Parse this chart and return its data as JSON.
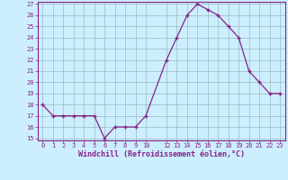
{
  "x": [
    0,
    1,
    2,
    3,
    4,
    5,
    6,
    7,
    8,
    9,
    10,
    12,
    13,
    14,
    15,
    16,
    17,
    18,
    19,
    20,
    21,
    22,
    23
  ],
  "y": [
    18,
    17,
    17,
    17,
    17,
    17,
    15,
    16,
    16,
    16,
    17,
    22,
    24,
    26,
    27,
    26.5,
    26,
    25,
    24,
    21,
    20,
    19,
    19
  ],
  "line_color": "#882288",
  "marker_color": "#882288",
  "bg_color": "#cceeff",
  "grid_color": "#99bbbb",
  "xlabel": "Windchill (Refroidissement éolien,°C)",
  "ylim": [
    15,
    27
  ],
  "xlim": [
    -0.5,
    23.5
  ],
  "yticks": [
    15,
    16,
    17,
    18,
    19,
    20,
    21,
    22,
    23,
    24,
    25,
    26,
    27
  ],
  "xticks": [
    0,
    1,
    2,
    3,
    4,
    5,
    6,
    7,
    8,
    9,
    10,
    12,
    13,
    14,
    15,
    16,
    17,
    18,
    19,
    20,
    21,
    22,
    23
  ],
  "tick_color": "#882288",
  "label_color": "#882288",
  "spine_color": "#882288",
  "tick_fontsize": 5.0,
  "xlabel_fontsize": 6.0
}
